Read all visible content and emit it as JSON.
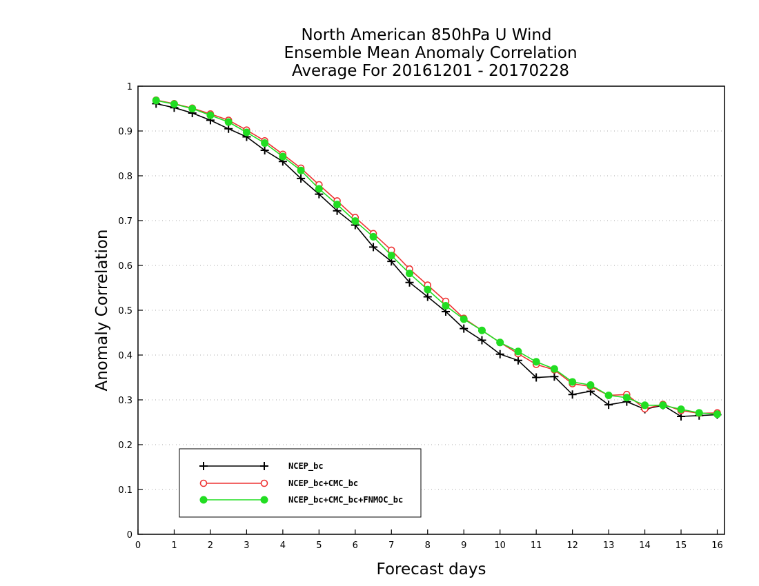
{
  "chart_data": {
    "type": "line",
    "title": [
      "North American 850hPa U Wind",
      "Ensemble Mean Anomaly Correlation",
      "Average For 20161201 - 20170228"
    ],
    "xlabel": "Forecast days",
    "ylabel": "Anomaly Correlation",
    "xlim": [
      0,
      16.2
    ],
    "ylim": [
      0,
      1
    ],
    "xticks": [
      0,
      1,
      2,
      3,
      4,
      5,
      6,
      7,
      8,
      9,
      10,
      11,
      12,
      13,
      14,
      15,
      16
    ],
    "yticks": [
      0,
      0.1,
      0.2,
      0.3,
      0.4,
      0.5,
      0.6,
      0.7,
      0.8,
      0.9,
      1
    ],
    "ytick_labels": [
      "0",
      "0.1",
      "0.2",
      "0.3",
      "0.4",
      "0.5",
      "0.6",
      "0.7",
      "0.8",
      "0.9",
      "1"
    ],
    "grid": "horizontal dotted",
    "legend": "bottom-left",
    "x": [
      0.5,
      1,
      1.5,
      2,
      2.5,
      3,
      3.5,
      4,
      4.5,
      5,
      5.5,
      6,
      6.5,
      7,
      7.5,
      8,
      8.5,
      9,
      9.5,
      10,
      10.5,
      11,
      11.5,
      12,
      12.5,
      13,
      13.5,
      14,
      14.5,
      15,
      15.5,
      16
    ],
    "series": [
      {
        "name": "NCEP_bc",
        "color": "#000000",
        "marker": "plus",
        "values": [
          0.961,
          0.952,
          0.94,
          0.924,
          0.905,
          0.887,
          0.857,
          0.832,
          0.794,
          0.759,
          0.722,
          0.69,
          0.641,
          0.609,
          0.562,
          0.53,
          0.497,
          0.459,
          0.433,
          0.402,
          0.388,
          0.35,
          0.352,
          0.312,
          0.319,
          0.289,
          0.296,
          0.279,
          0.288,
          0.263,
          0.265,
          0.267
        ]
      },
      {
        "name": "NCEP_bc+CMC_bc",
        "color": "#ee3333",
        "marker": "open-circle",
        "values": [
          0.969,
          0.961,
          0.951,
          0.938,
          0.924,
          0.902,
          0.878,
          0.848,
          0.817,
          0.78,
          0.744,
          0.707,
          0.671,
          0.634,
          0.592,
          0.556,
          0.52,
          0.482,
          0.455,
          0.428,
          0.403,
          0.379,
          0.367,
          0.336,
          0.33,
          0.31,
          0.312,
          0.28,
          0.29,
          0.276,
          0.27,
          0.271
        ]
      },
      {
        "name": "NCEP_bc+CMC_bc+FNMOC_bc",
        "color": "#22dd22",
        "marker": "filled-circle",
        "values": [
          0.968,
          0.96,
          0.95,
          0.935,
          0.92,
          0.897,
          0.873,
          0.843,
          0.812,
          0.771,
          0.736,
          0.699,
          0.664,
          0.622,
          0.582,
          0.546,
          0.51,
          0.48,
          0.455,
          0.428,
          0.408,
          0.385,
          0.369,
          0.34,
          0.333,
          0.31,
          0.305,
          0.288,
          0.288,
          0.279,
          0.271,
          0.268
        ]
      }
    ]
  }
}
